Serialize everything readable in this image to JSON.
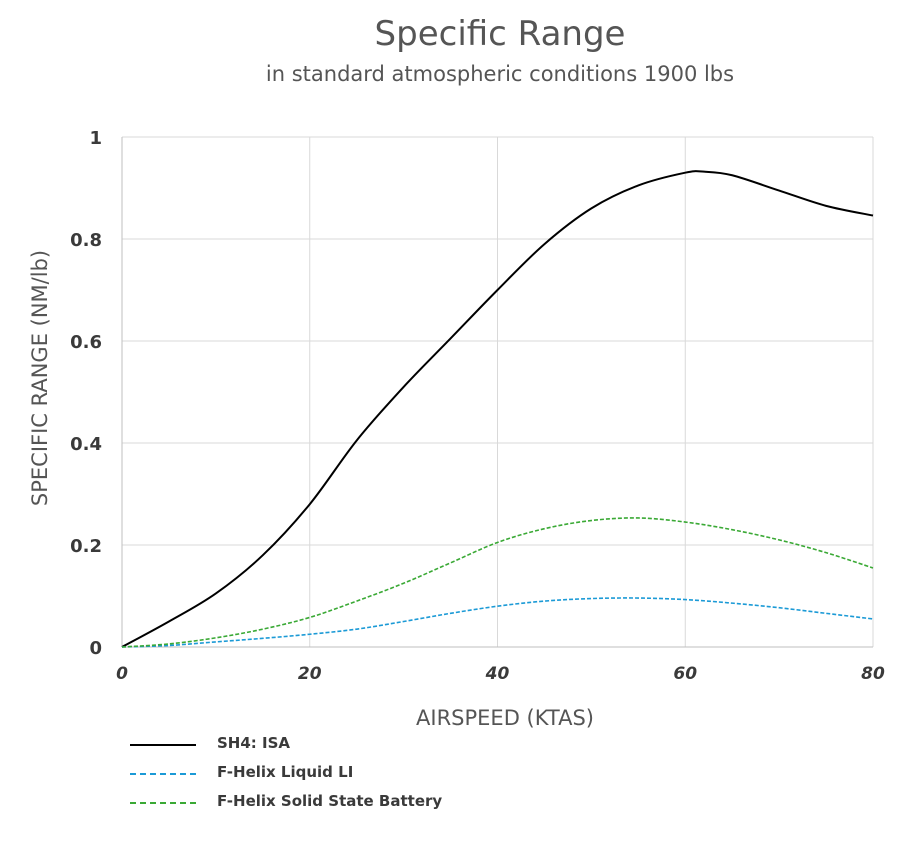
{
  "chart_data": {
    "type": "line",
    "title": "Specific Range",
    "subtitle": "in standard atmospheric conditions 1900 lbs",
    "xlabel": "AIRSPEED (KTAS)",
    "ylabel": "SPECIFIC RANGE (NM/lb)",
    "xlim": [
      0,
      80
    ],
    "ylim": [
      0,
      1
    ],
    "xticks": [
      0,
      20,
      40,
      60,
      80
    ],
    "yticks": [
      0,
      0.2,
      0.4,
      0.6,
      0.8,
      1
    ],
    "xtick_labels": [
      "0",
      "20",
      "40",
      "60",
      "80"
    ],
    "ytick_labels": [
      "0",
      "0.2",
      "0.4",
      "0.6",
      "0.8",
      "1"
    ],
    "grid": true,
    "legend_position": "bottom-left",
    "series": [
      {
        "name": "SH4: ISA",
        "color": "#000000",
        "style": "solid",
        "x": [
          0,
          5,
          10,
          15,
          20,
          25,
          30,
          35,
          40,
          45,
          50,
          55,
          60,
          62,
          65,
          70,
          75,
          80
        ],
        "y": [
          0,
          0.05,
          0.105,
          0.18,
          0.28,
          0.405,
          0.51,
          0.605,
          0.7,
          0.79,
          0.86,
          0.905,
          0.93,
          0.932,
          0.925,
          0.895,
          0.865,
          0.846
        ]
      },
      {
        "name": "F-Helix Liquid LI",
        "color": "#1b9ad6",
        "style": "dashed",
        "x": [
          0,
          5,
          10,
          15,
          20,
          25,
          30,
          35,
          40,
          45,
          50,
          55,
          60,
          65,
          70,
          75,
          80
        ],
        "y": [
          0,
          0.003,
          0.01,
          0.017,
          0.025,
          0.035,
          0.05,
          0.066,
          0.08,
          0.09,
          0.095,
          0.096,
          0.093,
          0.086,
          0.077,
          0.066,
          0.055
        ]
      },
      {
        "name": "F-Helix Solid State Battery",
        "color": "#3aa935",
        "style": "dashed",
        "x": [
          0,
          5,
          10,
          15,
          20,
          25,
          30,
          35,
          40,
          45,
          50,
          55,
          60,
          65,
          70,
          75,
          80
        ],
        "y": [
          0,
          0.006,
          0.018,
          0.035,
          0.058,
          0.09,
          0.125,
          0.165,
          0.205,
          0.232,
          0.248,
          0.253,
          0.245,
          0.23,
          0.21,
          0.185,
          0.155
        ]
      }
    ]
  }
}
